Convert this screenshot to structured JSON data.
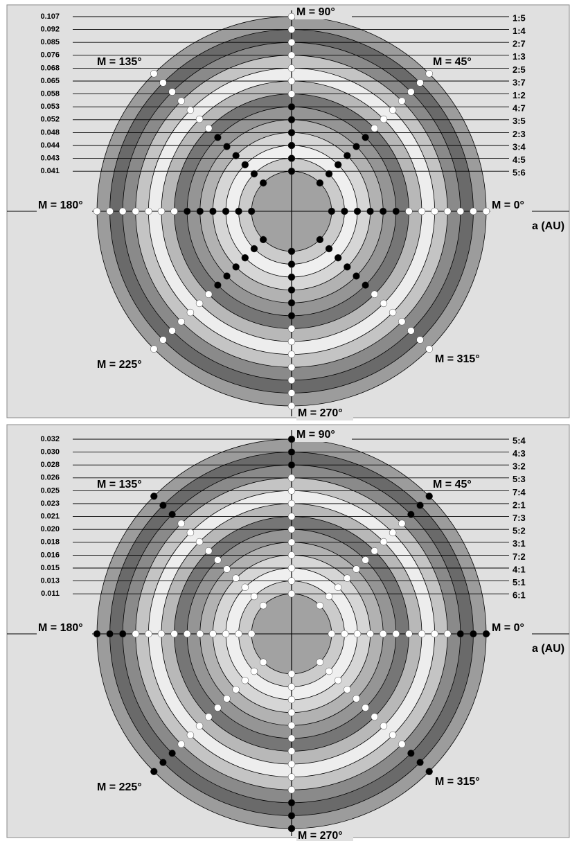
{
  "panels": [
    {
      "left_labels": [
        "0.107",
        "0.092",
        "0.085",
        "0.076",
        "0.068",
        "0.065",
        "0.058",
        "0.053",
        "0.052",
        "0.048",
        "0.044",
        "0.043",
        "0.041"
      ],
      "right_labels": [
        "1:5",
        "1:4",
        "2:7",
        "1:3",
        "2:5",
        "3:7",
        "1:2",
        "4:7",
        "3:5",
        "2:3",
        "3:4",
        "4:5",
        "5:6"
      ],
      "angle_labels": [
        "M = 90°",
        "M = 45°",
        "M = 135°",
        "M = 180°",
        "M = 0°",
        "M = 225°",
        "M = 315°",
        "M = 270°"
      ],
      "axis_label": "a (AU)",
      "dot_colors": [
        "#ffffff",
        "#ffffff",
        "#ffffff",
        "#ffffff",
        "#ffffff",
        "#ffffff",
        "#ffffff",
        "#000000",
        "#000000",
        "#000000",
        "#000000",
        "#000000",
        "#000000"
      ]
    },
    {
      "left_labels": [
        "0.032",
        "0.030",
        "0.028",
        "0.026",
        "0.025",
        "0.023",
        "0.021",
        "0.020",
        "0.018",
        "0.016",
        "0.015",
        "0.013",
        "0.011"
      ],
      "right_labels": [
        "5:4",
        "4:3",
        "3:2",
        "5:3",
        "7:4",
        "2:1",
        "7:3",
        "5:2",
        "3:1",
        "7:2",
        "4:1",
        "5:1",
        "6:1"
      ],
      "angle_labels": [
        "M = 90°",
        "M = 45°",
        "M = 135°",
        "M = 180°",
        "M = 0°",
        "M = 225°",
        "M = 315°",
        "M = 270°"
      ],
      "axis_label": "a (AU)",
      "dot_colors": [
        "#000000",
        "#000000",
        "#000000",
        "#ffffff",
        "#ffffff",
        "#ffffff",
        "#ffffff",
        "#ffffff",
        "#ffffff",
        "#ffffff",
        "#ffffff",
        "#ffffff",
        "#ffffff"
      ]
    }
  ]
}
